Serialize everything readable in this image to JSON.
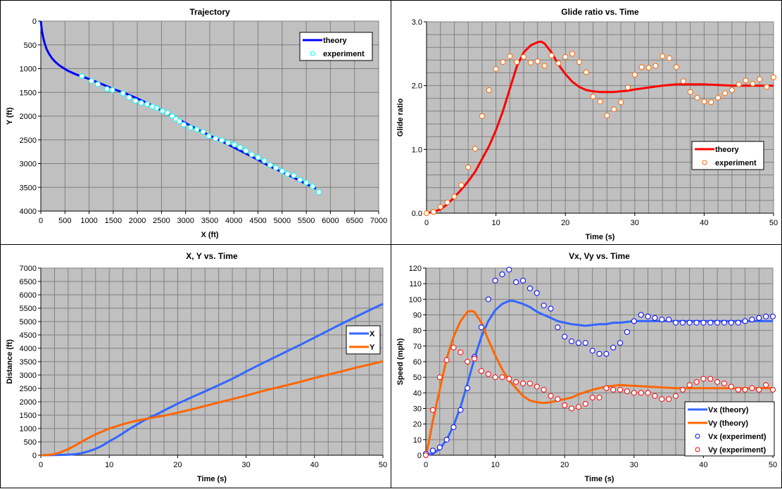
{
  "colors": {
    "plot_bg": "#c0c0c0",
    "grid": "#808080",
    "theory_blue": "#0000ff",
    "exp_cyan": "#00ffff",
    "theory_red": "#ff0000",
    "exp_orange": "#ff6600",
    "x_line": "#3366ff",
    "y_line": "#ff6600",
    "vx_exp": "#0000ff",
    "vy_exp": "#ff0000"
  },
  "chart_data": [
    {
      "id": "trajectory",
      "type": "scatter",
      "title": "Trajectory",
      "xlabel": "X (ft)",
      "ylabel": "Y (ft)",
      "xlim": [
        0,
        7000
      ],
      "ylim": [
        0,
        4000
      ],
      "y_reversed": true,
      "xticks": [
        0,
        500,
        1000,
        1500,
        2000,
        2500,
        3000,
        3500,
        4000,
        4500,
        5000,
        5500,
        6000,
        6500,
        7000
      ],
      "yticks": [
        0,
        500,
        1000,
        1500,
        2000,
        2500,
        3000,
        3500,
        4000
      ],
      "grid": true,
      "legend": "top-right",
      "series": [
        {
          "name": "theory",
          "kind": "line",
          "x": [
            0,
            10,
            25,
            50,
            80,
            120,
            170,
            230,
            300,
            380,
            470,
            570,
            680,
            800,
            950,
            1100,
            1300,
            1500,
            1750,
            2000,
            2250,
            2500,
            2750,
            3000,
            3250,
            3500,
            3750,
            4000,
            4250,
            4500,
            4750,
            5000,
            5250,
            5500,
            5700
          ],
          "y": [
            0,
            100,
            220,
            350,
            470,
            590,
            690,
            780,
            860,
            930,
            990,
            1050,
            1100,
            1150,
            1200,
            1260,
            1340,
            1430,
            1520,
            1630,
            1750,
            1880,
            2010,
            2150,
            2280,
            2410,
            2530,
            2660,
            2790,
            2920,
            3060,
            3180,
            3300,
            3430,
            3530
          ]
        },
        {
          "name": "experiment",
          "kind": "markers",
          "x": [
            850,
            1050,
            1180,
            1370,
            1480,
            1700,
            1830,
            1960,
            2080,
            2200,
            2310,
            2400,
            2520,
            2620,
            2720,
            2800,
            2870,
            2960,
            3100,
            3230,
            3360,
            3480,
            3620,
            3750,
            3880,
            4010,
            4130,
            4250,
            4370,
            4500,
            4630,
            4750,
            4870,
            5000,
            5110,
            5240,
            5370,
            5500,
            5630,
            5760
          ],
          "y": [
            1160,
            1260,
            1330,
            1430,
            1450,
            1520,
            1610,
            1680,
            1720,
            1750,
            1800,
            1830,
            1890,
            1930,
            2000,
            2060,
            2110,
            2180,
            2240,
            2280,
            2330,
            2420,
            2470,
            2510,
            2560,
            2600,
            2660,
            2730,
            2810,
            2870,
            2940,
            3030,
            3090,
            3160,
            3220,
            3250,
            3340,
            3400,
            3480,
            3600
          ]
        }
      ]
    },
    {
      "id": "glide",
      "type": "line",
      "title": "Glide ratio vs. Time",
      "xlabel": "Time (s)",
      "ylabel": "Glide ratio",
      "xlim": [
        0,
        50
      ],
      "ylim": [
        0,
        3
      ],
      "xticks": [
        0,
        10,
        20,
        30,
        40,
        50
      ],
      "yticks": [
        0,
        1,
        2,
        3
      ],
      "ytick_labels": [
        "0.0",
        "1.0",
        "2.0",
        "3.0"
      ],
      "x_minor": 2,
      "y_minor": 0.2,
      "grid": true,
      "legend": "right",
      "series": [
        {
          "name": "theory",
          "kind": "line",
          "x": [
            0,
            1,
            2,
            3,
            4,
            5,
            6,
            7,
            8,
            9,
            10,
            11,
            12,
            13,
            14,
            15,
            16,
            16.5,
            17,
            18,
            19,
            20,
            21,
            22,
            23,
            24,
            25,
            26,
            27,
            28,
            29,
            30,
            32,
            34,
            36,
            38,
            40,
            42,
            44,
            46,
            48,
            50
          ],
          "y": [
            0,
            0.02,
            0.06,
            0.14,
            0.25,
            0.37,
            0.5,
            0.65,
            0.85,
            1.05,
            1.3,
            1.6,
            1.95,
            2.3,
            2.52,
            2.63,
            2.68,
            2.69,
            2.66,
            2.52,
            2.33,
            2.18,
            2.06,
            1.98,
            1.93,
            1.91,
            1.9,
            1.9,
            1.9,
            1.91,
            1.92,
            1.94,
            1.97,
            2.0,
            2.02,
            2.02,
            2.02,
            2.01,
            2.0,
            2.0,
            2.0,
            2.0
          ]
        },
        {
          "name": "experiment",
          "kind": "markers",
          "x": [
            0,
            1,
            2,
            3,
            4,
            5,
            6,
            7,
            8,
            9,
            10,
            11,
            12,
            13,
            14,
            15,
            16,
            17,
            18,
            19,
            20,
            21,
            22,
            23,
            24,
            25,
            26,
            27,
            28,
            29,
            30,
            31,
            32,
            33,
            34,
            35,
            36,
            37,
            38,
            39,
            40,
            41,
            42,
            43,
            44,
            45,
            46,
            47,
            48,
            49,
            50
          ],
          "y": [
            0.0,
            0.02,
            0.1,
            0.17,
            0.26,
            0.44,
            0.72,
            1.01,
            1.52,
            1.93,
            2.26,
            2.37,
            2.46,
            2.37,
            2.45,
            2.36,
            2.38,
            2.31,
            2.47,
            2.35,
            2.45,
            2.5,
            2.37,
            2.21,
            1.83,
            1.75,
            1.53,
            1.63,
            1.74,
            1.97,
            2.17,
            2.29,
            2.28,
            2.31,
            2.46,
            2.43,
            2.29,
            2.07,
            1.9,
            1.81,
            1.75,
            1.74,
            1.81,
            1.88,
            1.93,
            2.02,
            2.08,
            2.03,
            2.1,
            1.98,
            2.13
          ]
        }
      ]
    },
    {
      "id": "xy",
      "type": "line",
      "title": "X, Y vs. Time",
      "xlabel": "Time (s)",
      "ylabel": "Distance (ft)",
      "xlim": [
        0,
        50
      ],
      "ylim": [
        0,
        7000
      ],
      "xticks": [
        0,
        10,
        20,
        30,
        40,
        50
      ],
      "yticks": [
        0,
        500,
        1000,
        1500,
        2000,
        2500,
        3000,
        3500,
        4000,
        4500,
        5000,
        5500,
        6000,
        6500,
        7000
      ],
      "x_minor": 2,
      "grid": true,
      "legend": "right",
      "series": [
        {
          "name": "X",
          "kind": "line",
          "x": [
            0,
            2,
            4,
            5,
            6,
            7,
            8,
            9,
            10,
            11,
            12,
            13,
            14,
            15,
            16,
            17,
            18,
            19,
            20,
            22,
            24,
            26,
            28,
            30,
            32,
            34,
            36,
            38,
            40,
            42,
            44,
            46,
            48,
            50
          ],
          "y": [
            0,
            5,
            20,
            40,
            80,
            150,
            240,
            360,
            520,
            660,
            820,
            990,
            1140,
            1290,
            1420,
            1540,
            1670,
            1800,
            1930,
            2160,
            2390,
            2620,
            2860,
            3130,
            3390,
            3640,
            3890,
            4140,
            4400,
            4660,
            4920,
            5170,
            5420,
            5660
          ]
        },
        {
          "name": "Y",
          "kind": "line",
          "x": [
            0,
            1,
            2,
            3,
            4,
            5,
            6,
            7,
            8,
            9,
            10,
            11,
            12,
            13,
            14,
            15,
            16,
            17,
            18,
            20,
            22,
            24,
            26,
            28,
            30,
            32,
            34,
            36,
            38,
            40,
            42,
            44,
            46,
            48,
            50
          ],
          "y": [
            0,
            10,
            40,
            120,
            230,
            360,
            510,
            650,
            780,
            890,
            1000,
            1080,
            1160,
            1230,
            1290,
            1340,
            1390,
            1440,
            1480,
            1590,
            1710,
            1840,
            1970,
            2100,
            2230,
            2370,
            2500,
            2620,
            2750,
            2890,
            3010,
            3140,
            3270,
            3390,
            3510
          ]
        }
      ]
    },
    {
      "id": "vxvy",
      "type": "line",
      "title": "Vx, Vy vs. Time",
      "xlabel": "Time (s)",
      "ylabel": "Speed (mph)",
      "xlim": [
        0,
        50
      ],
      "ylim": [
        0,
        120
      ],
      "xticks": [
        0,
        10,
        20,
        30,
        40,
        50
      ],
      "yticks": [
        0,
        10,
        20,
        30,
        40,
        50,
        60,
        70,
        80,
        90,
        100,
        110,
        120
      ],
      "x_minor": 2,
      "grid": true,
      "legend": "bottom-right",
      "series": [
        {
          "name": "Vx (theory)",
          "kind": "line",
          "x": [
            0,
            1,
            2,
            3,
            4,
            5,
            6,
            7,
            8,
            9,
            10,
            11,
            12,
            12.5,
            13,
            14,
            15,
            16,
            17,
            18,
            19,
            20,
            21,
            22,
            23,
            24,
            25,
            26,
            27,
            28,
            29,
            30,
            31,
            32,
            34,
            36,
            38,
            40,
            42,
            44,
            46,
            48,
            50
          ],
          "y": [
            0,
            1,
            4,
            10,
            19,
            31,
            46,
            62,
            76,
            86,
            93,
            97,
            99,
            99,
            98.5,
            97,
            95,
            92,
            90,
            88,
            86,
            85,
            84,
            83.5,
            83,
            83.5,
            84,
            84,
            85,
            85,
            85.5,
            86,
            86,
            86,
            86,
            86,
            86,
            86,
            86,
            86,
            86,
            86,
            86
          ]
        },
        {
          "name": "Vy (theory)",
          "kind": "line",
          "x": [
            0,
            0.5,
            1,
            2,
            3,
            4,
            5,
            6,
            6.5,
            7,
            8,
            9,
            10,
            11,
            12,
            13,
            14,
            15,
            16,
            17,
            18,
            19,
            20,
            21,
            22,
            23,
            24,
            25,
            26,
            27,
            28,
            30,
            32,
            34,
            36,
            38,
            40,
            42,
            44,
            46,
            48,
            50
          ],
          "y": [
            0,
            10,
            22,
            42,
            62,
            76,
            86,
            92,
            92.5,
            92,
            85,
            74,
            64,
            55,
            48,
            43,
            38,
            35,
            34,
            33.5,
            34,
            35,
            36,
            37,
            39,
            40.5,
            42,
            43,
            44,
            44.5,
            45,
            44.5,
            44,
            43.5,
            43,
            43,
            43,
            43,
            43,
            43,
            43,
            43
          ]
        },
        {
          "name": "Vx (experiment)",
          "kind": "markers",
          "x": [
            0,
            1,
            2,
            3,
            4,
            5,
            6,
            7,
            8,
            9,
            10,
            11,
            12,
            13,
            14,
            15,
            16,
            17,
            18,
            19,
            20,
            21,
            22,
            23,
            24,
            25,
            26,
            27,
            28,
            29,
            30,
            31,
            32,
            33,
            34,
            35,
            36,
            37,
            38,
            39,
            40,
            41,
            42,
            43,
            44,
            45,
            46,
            47,
            48,
            49,
            50
          ],
          "y": [
            1,
            3,
            5,
            10,
            18,
            29,
            43,
            63,
            82,
            100,
            112,
            116,
            119,
            111,
            112,
            107,
            104,
            96,
            94,
            82,
            76,
            73,
            72,
            72,
            67,
            65,
            65,
            69,
            72,
            79,
            86,
            90,
            89,
            88,
            87,
            87,
            85,
            85,
            85,
            85,
            85,
            85,
            85,
            85,
            85,
            85,
            86,
            87,
            88,
            89,
            89
          ]
        },
        {
          "name": "Vy (experiment)",
          "kind": "markers",
          "x": [
            0,
            1,
            2,
            3,
            4,
            5,
            6,
            7,
            8,
            9,
            10,
            11,
            12,
            13,
            14,
            15,
            16,
            17,
            18,
            19,
            20,
            21,
            22,
            23,
            24,
            25,
            26,
            27,
            28,
            29,
            30,
            31,
            32,
            33,
            34,
            35,
            36,
            37,
            38,
            39,
            40,
            41,
            42,
            43,
            44,
            45,
            46,
            47,
            48,
            49,
            50
          ],
          "y": [
            0,
            29,
            50,
            61,
            69,
            66,
            60,
            62,
            54,
            52,
            50,
            50,
            49,
            47,
            46,
            46,
            44,
            42,
            38,
            36,
            32,
            30,
            31,
            33,
            37,
            37,
            43,
            42,
            42,
            41,
            40,
            40,
            40,
            38,
            36,
            36,
            38,
            42,
            45,
            47,
            49,
            49,
            47,
            46,
            44,
            42,
            42,
            43,
            42,
            45,
            42
          ]
        }
      ]
    }
  ]
}
